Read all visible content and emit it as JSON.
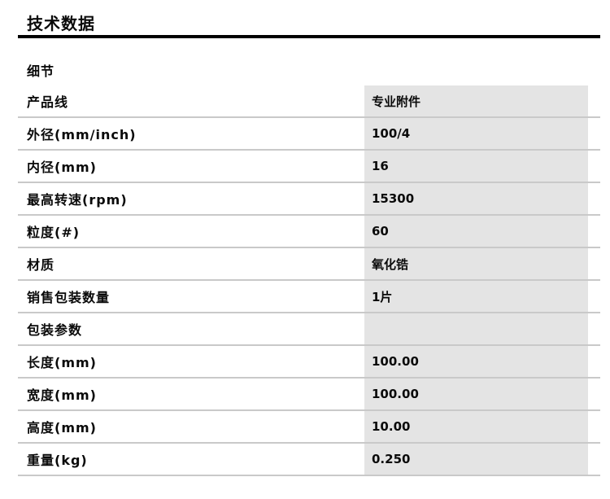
{
  "page": {
    "title": "技术数据",
    "section_label": "细节"
  },
  "table": {
    "rows": [
      {
        "label": "产品线",
        "value": "专业附件"
      },
      {
        "label": "外径(mm/inch)",
        "value": "100/4"
      },
      {
        "label": "内径(mm)",
        "value": "16"
      },
      {
        "label": "最高转速(rpm)",
        "value": "15300"
      },
      {
        "label": "粒度(#)",
        "value": "60"
      },
      {
        "label": "材质",
        "value": "氧化锆"
      },
      {
        "label": "销售包装数量",
        "value": "1片"
      },
      {
        "label": "包装参数",
        "value": ""
      },
      {
        "label": "长度(mm)",
        "value": "100.00"
      },
      {
        "label": "宽度(mm)",
        "value": "100.00"
      },
      {
        "label": "高度(mm)",
        "value": "10.00"
      },
      {
        "label": "重量(kg)",
        "value": "0.250"
      }
    ]
  },
  "colors": {
    "value_cell_bg": "#e4e4e4",
    "divider": "#c9c9c9",
    "title_rule": "#000000",
    "text": "#0a0a0a"
  }
}
